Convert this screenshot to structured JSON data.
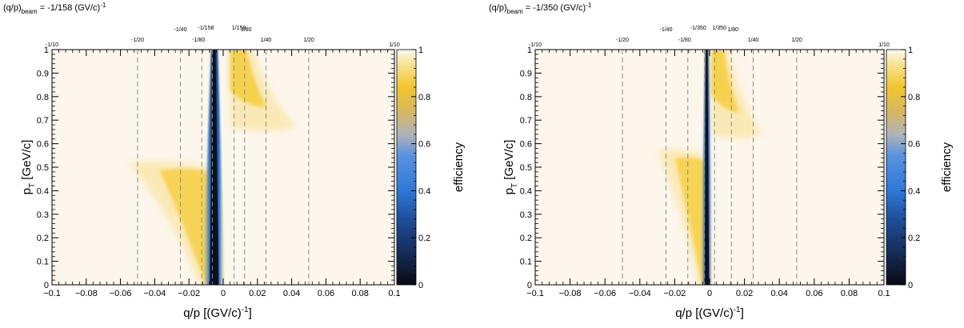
{
  "chart_data": [
    {
      "type": "heatmap",
      "title_main": "(q/p)",
      "title_sub": "beam",
      "title_value": " = -1/158 (GV/c)",
      "title_sup": "-1",
      "xlabel_main": "q/p [(GV/c)",
      "xlabel_sup": "-1",
      "xlabel_end": "]",
      "ylabel_main": "p",
      "ylabel_sub": "T",
      "ylabel_end": " [GeV/c]",
      "zlabel": "efficiency",
      "xlim": [
        -0.1,
        0.1
      ],
      "ylim": [
        0,
        1
      ],
      "zlim": [
        0,
        1
      ],
      "xticks": [
        -0.1,
        -0.08,
        -0.06,
        -0.04,
        -0.02,
        0,
        0.02,
        0.04,
        0.06,
        0.08,
        0.1
      ],
      "xtick_labels": [
        "−0.1",
        "−0.08",
        "−0.06",
        "−0.04",
        "−0.02",
        "0",
        "0.02",
        "0.04",
        "0.06",
        "0.08",
        "0.1"
      ],
      "yticks": [
        0,
        0.1,
        0.2,
        0.3,
        0.4,
        0.5,
        0.6,
        0.7,
        0.8,
        0.9,
        1
      ],
      "ytick_labels": [
        "0",
        "0.1",
        "0.2",
        "0.3",
        "0.4",
        "0.5",
        "0.6",
        "0.7",
        "0.8",
        "0.9",
        "1"
      ],
      "zticks": [
        0,
        0.2,
        0.4,
        0.6,
        0.8,
        1
      ],
      "ztick_labels": [
        "0",
        "0.2",
        "0.4",
        "0.6",
        "0.8",
        "1"
      ],
      "beam_qp": -0.006329,
      "reference_lines": [
        {
          "x": -0.1,
          "label": "-1/10",
          "dashed": false
        },
        {
          "x": -0.05,
          "label": "-1/20",
          "dashed": true
        },
        {
          "x": -0.025,
          "label": "-1/40",
          "dashed": true
        },
        {
          "x": -0.0125,
          "label": "-1/80",
          "dashed": true
        },
        {
          "x": -0.006329,
          "label": "-1/158",
          "dashed": true
        },
        {
          "x": 0.006329,
          "label": "1/158",
          "dashed": true
        },
        {
          "x": 0.0125,
          "label": "1/80",
          "dashed": true
        },
        {
          "x": 0.025,
          "label": "1/40",
          "dashed": true
        },
        {
          "x": 0.05,
          "label": "1/20",
          "dashed": true
        },
        {
          "x": 0.1,
          "label": "1/10",
          "dashed": false
        }
      ],
      "efficiency_regions": [
        {
          "name": "background",
          "efficiency": 0.98
        },
        {
          "name": "negative-lobe",
          "efficiency": 0.8,
          "q_over_p_range": [
            -0.055,
            -0.004
          ],
          "pT_range": [
            0,
            0.52
          ]
        },
        {
          "name": "positive-lobe",
          "efficiency": 0.8,
          "q_over_p_range": [
            0.004,
            0.043
          ],
          "pT_range": [
            0.65,
            1
          ]
        },
        {
          "name": "inefficient-band",
          "efficiency": 0.05,
          "q_over_p_range": [
            -0.012,
            0.001
          ],
          "pT_range": [
            0,
            1
          ]
        }
      ]
    },
    {
      "type": "heatmap",
      "title_main": "(q/p)",
      "title_sub": "beam",
      "title_value": " = -1/350 (GV/c)",
      "title_sup": "-1",
      "xlabel_main": "q/p [(GV/c)",
      "xlabel_sup": "-1",
      "xlabel_end": "]",
      "ylabel_main": "p",
      "ylabel_sub": "T",
      "ylabel_end": " [GeV/c]",
      "zlabel": "efficiency",
      "xlim": [
        -0.1,
        0.1
      ],
      "ylim": [
        0,
        1
      ],
      "zlim": [
        0,
        1
      ],
      "xticks": [
        -0.1,
        -0.08,
        -0.06,
        -0.04,
        -0.02,
        0,
        0.02,
        0.04,
        0.06,
        0.08,
        0.1
      ],
      "xtick_labels": [
        "−0.1",
        "−0.08",
        "−0.06",
        "−0.04",
        "−0.02",
        "0",
        "0.02",
        "0.04",
        "0.06",
        "0.08",
        "0.1"
      ],
      "yticks": [
        0,
        0.1,
        0.2,
        0.3,
        0.4,
        0.5,
        0.6,
        0.7,
        0.8,
        0.9,
        1
      ],
      "ytick_labels": [
        "0",
        "0.1",
        "0.2",
        "0.3",
        "0.4",
        "0.5",
        "0.6",
        "0.7",
        "0.8",
        "0.9",
        "1"
      ],
      "zticks": [
        0,
        0.2,
        0.4,
        0.6,
        0.8,
        1
      ],
      "ztick_labels": [
        "0",
        "0.2",
        "0.4",
        "0.6",
        "0.8",
        "1"
      ],
      "beam_qp": -0.002857,
      "reference_lines": [
        {
          "x": -0.1,
          "label": "-1/10",
          "dashed": false
        },
        {
          "x": -0.05,
          "label": "-1/20",
          "dashed": true
        },
        {
          "x": -0.025,
          "label": "-1/40",
          "dashed": true
        },
        {
          "x": -0.0125,
          "label": "-1/80",
          "dashed": true
        },
        {
          "x": -0.002857,
          "label": "-1/350",
          "dashed": true
        },
        {
          "x": 0.002857,
          "label": "1/350",
          "dashed": true
        },
        {
          "x": 0.0125,
          "label": "1/80",
          "dashed": true
        },
        {
          "x": 0.025,
          "label": "1/40",
          "dashed": true
        },
        {
          "x": 0.05,
          "label": "1/20",
          "dashed": true
        },
        {
          "x": 0.1,
          "label": "1/10",
          "dashed": false
        }
      ],
      "efficiency_regions": [
        {
          "name": "background",
          "efficiency": 0.98
        },
        {
          "name": "negative-lobe",
          "efficiency": 0.8,
          "q_over_p_range": [
            -0.03,
            -0.001
          ],
          "pT_range": [
            0,
            0.57
          ]
        },
        {
          "name": "positive-lobe",
          "efficiency": 0.8,
          "q_over_p_range": [
            0.001,
            0.03
          ],
          "pT_range": [
            0.62,
            1
          ]
        },
        {
          "name": "inefficient-band",
          "efficiency": 0.05,
          "q_over_p_range": [
            -0.005,
            0.0015
          ],
          "pT_range": [
            0,
            1
          ]
        }
      ]
    }
  ],
  "colors": {
    "background": "#fcf6ec",
    "lobe": "#f6cd3c",
    "lobe_light": "#fae7ad",
    "band_blue": "#2a78d8",
    "band_dark": "#0b1020",
    "ref_line": "#888888"
  }
}
